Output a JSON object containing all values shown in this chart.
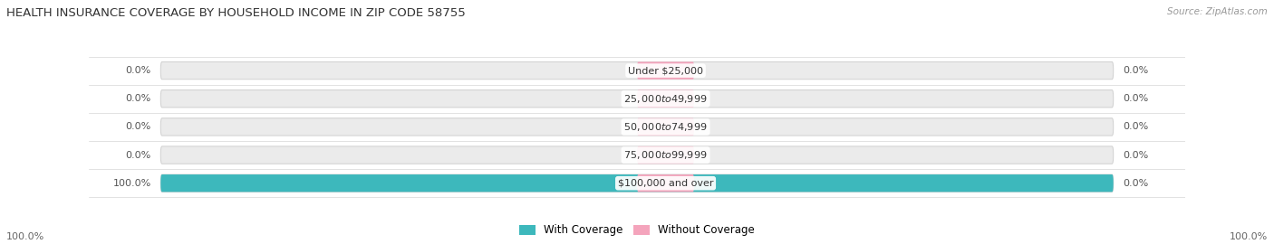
{
  "title": "HEALTH INSURANCE COVERAGE BY HOUSEHOLD INCOME IN ZIP CODE 58755",
  "source": "Source: ZipAtlas.com",
  "categories": [
    "Under $25,000",
    "$25,000 to $49,999",
    "$50,000 to $74,999",
    "$75,000 to $99,999",
    "$100,000 and over"
  ],
  "with_coverage": [
    0.0,
    0.0,
    0.0,
    0.0,
    100.0
  ],
  "without_coverage": [
    0.0,
    0.0,
    0.0,
    0.0,
    0.0
  ],
  "color_with": "#3db8bc",
  "color_without": "#f4a4bc",
  "bar_bg_color": "#ebebeb",
  "bar_outline_color": "#d0d0d0",
  "label_color": "#555555",
  "bg_color": "#ffffff",
  "title_color": "#333333",
  "source_color": "#999999",
  "axis_label_color": "#666666",
  "bar_height": 0.62,
  "axis_bottom_left": "100.0%",
  "axis_bottom_right": "100.0%",
  "legend_with": "With Coverage",
  "legend_without": "Without Coverage",
  "cat_label_fontsize": 8.0,
  "pct_label_fontsize": 8.0,
  "title_fontsize": 9.5
}
